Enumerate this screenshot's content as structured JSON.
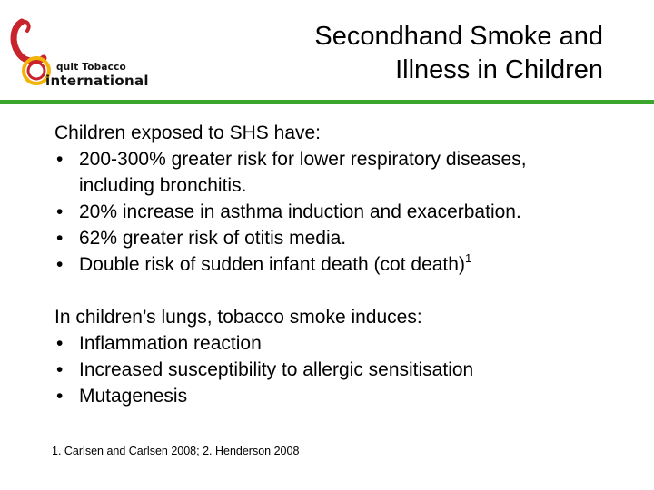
{
  "logo": {
    "icon": "qti-swirl-logo",
    "top_text": "quit Tobacco",
    "bottom_text": "international",
    "colors": {
      "swirl": "#c8242b",
      "ring": "#f2b40a",
      "text": "#111111"
    }
  },
  "title": {
    "line1": "Secondhand Smoke and",
    "line2": "Illness in Children"
  },
  "accent_color": "#3aa62b",
  "section1": {
    "heading": "Children exposed to SHS have:",
    "bullets": [
      {
        "text": "200-300% greater risk for lower respiratory diseases,",
        "continuation": "including bronchitis."
      },
      {
        "text": "20% increase in asthma induction and exacerbation."
      },
      {
        "text": "62% greater risk of otitis media."
      },
      {
        "text": "Double risk of sudden infant death (cot death)",
        "sup": "1"
      }
    ]
  },
  "section2": {
    "heading": "In children’s lungs, tobacco smoke induces:",
    "bullets": [
      {
        "text": "Inflammation reaction"
      },
      {
        "text": "Increased susceptibility to allergic sensitisation"
      },
      {
        "text": "Mutagenesis"
      }
    ]
  },
  "footnote": "1. Carlsen and Carlsen 2008;  2. Henderson 2008"
}
